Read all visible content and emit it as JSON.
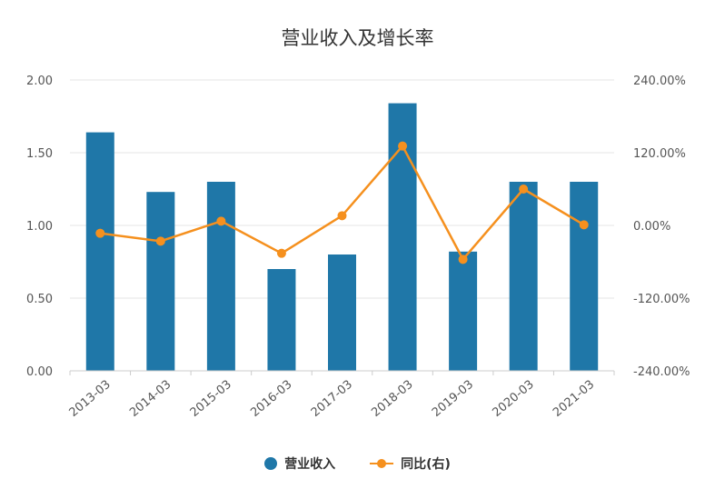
{
  "chart_data": {
    "type": "bar",
    "title": "营业收入及增长率",
    "categories": [
      "2013-03",
      "2014-03",
      "2015-03",
      "2016-03",
      "2017-03",
      "2018-03",
      "2019-03",
      "2020-03",
      "2021-03"
    ],
    "left_axis": {
      "ticks": [
        "0.00",
        "0.50",
        "1.00",
        "1.50",
        "2.00"
      ],
      "ylim": [
        0,
        2
      ]
    },
    "right_axis": {
      "ticks": [
        "-240.00%",
        "-120.00%",
        "0.00%",
        "120.00%",
        "240.00%"
      ],
      "ylim": [
        -240,
        240
      ]
    },
    "series": [
      {
        "name": "营业收入",
        "type": "bar",
        "axis": "left",
        "color": "#1f77a8",
        "values": [
          1.64,
          1.23,
          1.3,
          0.7,
          0.8,
          1.84,
          0.82,
          1.3,
          1.3
        ]
      },
      {
        "name": "同比(右)",
        "type": "line",
        "axis": "right",
        "color": "#f5901e",
        "values": [
          -13,
          -26,
          7,
          -46,
          16,
          131,
          -56,
          60,
          1
        ]
      }
    ],
    "grid": true,
    "legend_position": "bottom"
  }
}
